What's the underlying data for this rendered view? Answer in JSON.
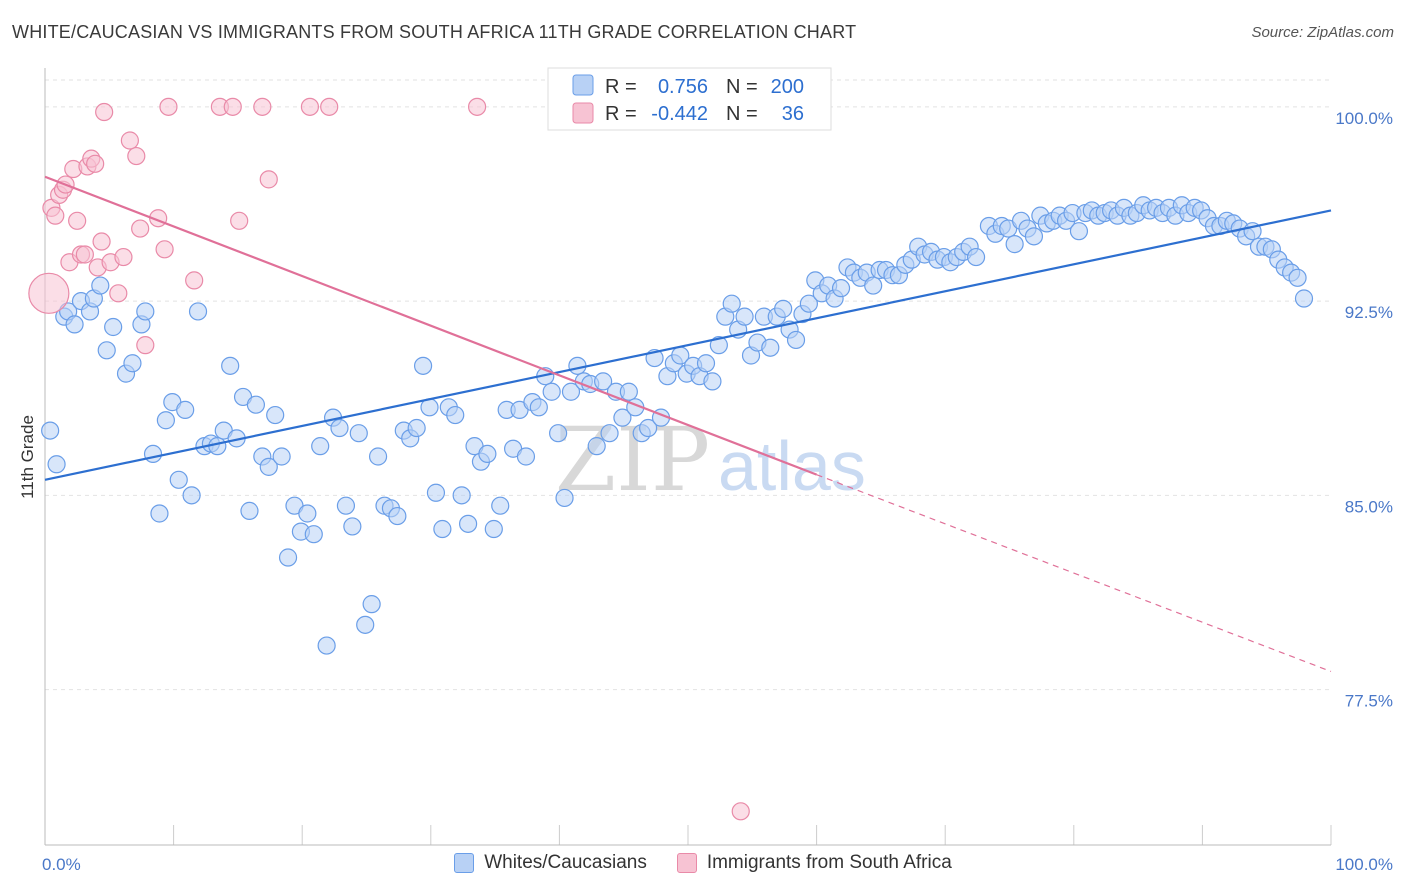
{
  "title": "WHITE/CAUCASIAN VS IMMIGRANTS FROM SOUTH AFRICA 11TH GRADE CORRELATION CHART",
  "source": "Source: ZipAtlas.com",
  "watermark": {
    "zip": "ZIP",
    "atlas": "atlas"
  },
  "colors": {
    "blue": "#6a9ee8",
    "blue_fill": "#b8d1f5",
    "blue_line": "#2d6fd0",
    "pink": "#e98aa8",
    "pink_fill": "#f7c3d3",
    "pink_line": "#e07098",
    "axis_text": "#4a78c8"
  },
  "legend_top": [
    {
      "r_label": "R =",
      "r_value": "0.756",
      "n_label": "N =",
      "n_value": "200"
    },
    {
      "r_label": "R =",
      "r_value": "-0.442",
      "n_label": "N =",
      "n_value": "36"
    }
  ],
  "chart_data": {
    "type": "scatter",
    "title": "WHITE/CAUCASIAN VS IMMIGRANTS FROM SOUTH AFRICA 11TH GRADE CORRELATION CHART",
    "xlabel": "",
    "ylabel": "11th Grade",
    "xlim": [
      0,
      100
    ],
    "ylim": [
      71.5,
      101.5
    ],
    "x_tick_labels": [
      "0.0%",
      "100.0%"
    ],
    "y_ticks": [
      77.5,
      85.0,
      92.5,
      100.0
    ],
    "y_tick_labels": [
      "77.5%",
      "85.0%",
      "92.5%",
      "100.0%"
    ],
    "legend": [
      "Whites/Caucasians",
      "Immigrants from South Africa"
    ],
    "series": [
      {
        "name": "Whites/Caucasians",
        "trend": {
          "x": [
            0,
            100
          ],
          "y": [
            85.6,
            96.0
          ]
        },
        "points": [
          [
            0.4,
            87.5
          ],
          [
            0.9,
            86.2
          ],
          [
            1.5,
            91.9
          ],
          [
            1.8,
            92.1
          ],
          [
            2.3,
            91.6
          ],
          [
            2.8,
            92.5
          ],
          [
            3.5,
            92.1
          ],
          [
            3.8,
            92.6
          ],
          [
            4.3,
            93.1
          ],
          [
            4.8,
            90.6
          ],
          [
            5.3,
            91.5
          ],
          [
            6.3,
            89.7
          ],
          [
            6.8,
            90.1
          ],
          [
            7.5,
            91.6
          ],
          [
            7.8,
            92.1
          ],
          [
            8.4,
            86.6
          ],
          [
            8.9,
            84.3
          ],
          [
            9.4,
            87.9
          ],
          [
            9.9,
            88.6
          ],
          [
            10.4,
            85.6
          ],
          [
            10.9,
            88.3
          ],
          [
            11.4,
            85.0
          ],
          [
            11.9,
            92.1
          ],
          [
            12.4,
            86.9
          ],
          [
            12.9,
            87.0
          ],
          [
            13.4,
            86.9
          ],
          [
            13.9,
            87.5
          ],
          [
            14.4,
            90.0
          ],
          [
            14.9,
            87.2
          ],
          [
            15.4,
            88.8
          ],
          [
            15.9,
            84.4
          ],
          [
            16.4,
            88.5
          ],
          [
            16.9,
            86.5
          ],
          [
            17.4,
            86.1
          ],
          [
            17.9,
            88.1
          ],
          [
            18.4,
            86.5
          ],
          [
            18.9,
            82.6
          ],
          [
            19.4,
            84.6
          ],
          [
            19.9,
            83.6
          ],
          [
            20.4,
            84.3
          ],
          [
            20.9,
            83.5
          ],
          [
            21.4,
            86.9
          ],
          [
            21.9,
            79.2
          ],
          [
            22.4,
            88.0
          ],
          [
            22.9,
            87.6
          ],
          [
            23.4,
            84.6
          ],
          [
            23.9,
            83.8
          ],
          [
            24.4,
            87.4
          ],
          [
            24.9,
            80.0
          ],
          [
            25.4,
            80.8
          ],
          [
            25.9,
            86.5
          ],
          [
            26.4,
            84.6
          ],
          [
            26.9,
            84.5
          ],
          [
            27.4,
            84.2
          ],
          [
            27.9,
            87.5
          ],
          [
            28.4,
            87.2
          ],
          [
            28.9,
            87.6
          ],
          [
            29.4,
            90.0
          ],
          [
            29.9,
            88.4
          ],
          [
            30.4,
            85.1
          ],
          [
            30.9,
            83.7
          ],
          [
            31.4,
            88.4
          ],
          [
            31.9,
            88.1
          ],
          [
            32.4,
            85.0
          ],
          [
            32.9,
            83.9
          ],
          [
            33.4,
            86.9
          ],
          [
            33.9,
            86.3
          ],
          [
            34.4,
            86.6
          ],
          [
            34.9,
            83.7
          ],
          [
            35.4,
            84.6
          ],
          [
            35.9,
            88.3
          ],
          [
            36.4,
            86.8
          ],
          [
            36.9,
            88.3
          ],
          [
            37.4,
            86.5
          ],
          [
            37.9,
            88.6
          ],
          [
            38.4,
            88.4
          ],
          [
            38.9,
            89.6
          ],
          [
            39.4,
            89.0
          ],
          [
            39.9,
            87.4
          ],
          [
            40.4,
            84.9
          ],
          [
            40.9,
            89.0
          ],
          [
            41.4,
            90.0
          ],
          [
            41.9,
            89.4
          ],
          [
            42.4,
            89.3
          ],
          [
            42.9,
            86.9
          ],
          [
            43.4,
            89.4
          ],
          [
            43.9,
            87.4
          ],
          [
            44.4,
            89.0
          ],
          [
            44.9,
            88.0
          ],
          [
            45.4,
            89.0
          ],
          [
            45.9,
            88.4
          ],
          [
            46.4,
            87.4
          ],
          [
            46.9,
            87.6
          ],
          [
            47.4,
            90.3
          ],
          [
            47.9,
            88.0
          ],
          [
            48.4,
            89.6
          ],
          [
            48.9,
            90.1
          ],
          [
            49.4,
            90.4
          ],
          [
            49.9,
            89.7
          ],
          [
            50.4,
            90.0
          ],
          [
            50.9,
            89.6
          ],
          [
            51.4,
            90.1
          ],
          [
            51.9,
            89.4
          ],
          [
            52.4,
            90.8
          ],
          [
            52.9,
            91.9
          ],
          [
            53.4,
            92.4
          ],
          [
            53.9,
            91.4
          ],
          [
            54.4,
            91.9
          ],
          [
            54.9,
            90.4
          ],
          [
            55.4,
            90.9
          ],
          [
            55.9,
            91.9
          ],
          [
            56.4,
            90.7
          ],
          [
            56.9,
            91.9
          ],
          [
            57.4,
            92.2
          ],
          [
            57.9,
            91.4
          ],
          [
            58.4,
            91.0
          ],
          [
            58.9,
            92.0
          ],
          [
            59.4,
            92.4
          ],
          [
            59.9,
            93.3
          ],
          [
            60.4,
            92.8
          ],
          [
            60.9,
            93.1
          ],
          [
            61.4,
            92.6
          ],
          [
            61.9,
            93.0
          ],
          [
            62.4,
            93.8
          ],
          [
            62.9,
            93.6
          ],
          [
            63.4,
            93.4
          ],
          [
            63.9,
            93.6
          ],
          [
            64.4,
            93.1
          ],
          [
            64.9,
            93.7
          ],
          [
            65.4,
            93.7
          ],
          [
            65.9,
            93.5
          ],
          [
            66.4,
            93.5
          ],
          [
            66.9,
            93.9
          ],
          [
            67.4,
            94.1
          ],
          [
            67.9,
            94.6
          ],
          [
            68.4,
            94.3
          ],
          [
            68.9,
            94.4
          ],
          [
            69.4,
            94.1
          ],
          [
            69.9,
            94.2
          ],
          [
            70.4,
            94.0
          ],
          [
            70.9,
            94.2
          ],
          [
            71.4,
            94.4
          ],
          [
            71.9,
            94.6
          ],
          [
            72.4,
            94.2
          ],
          [
            73.4,
            95.4
          ],
          [
            73.9,
            95.1
          ],
          [
            74.4,
            95.4
          ],
          [
            74.9,
            95.3
          ],
          [
            75.4,
            94.7
          ],
          [
            75.9,
            95.6
          ],
          [
            76.4,
            95.3
          ],
          [
            76.9,
            95.0
          ],
          [
            77.4,
            95.8
          ],
          [
            77.9,
            95.5
          ],
          [
            78.4,
            95.6
          ],
          [
            78.9,
            95.8
          ],
          [
            79.4,
            95.6
          ],
          [
            79.9,
            95.9
          ],
          [
            80.4,
            95.2
          ],
          [
            80.9,
            95.9
          ],
          [
            81.4,
            96.0
          ],
          [
            81.9,
            95.8
          ],
          [
            82.4,
            95.9
          ],
          [
            82.9,
            96.0
          ],
          [
            83.4,
            95.8
          ],
          [
            83.9,
            96.1
          ],
          [
            84.4,
            95.8
          ],
          [
            84.9,
            95.9
          ],
          [
            85.4,
            96.2
          ],
          [
            85.9,
            96.0
          ],
          [
            86.4,
            96.1
          ],
          [
            86.9,
            95.9
          ],
          [
            87.4,
            96.1
          ],
          [
            87.9,
            95.8
          ],
          [
            88.4,
            96.2
          ],
          [
            88.9,
            95.9
          ],
          [
            89.4,
            96.1
          ],
          [
            89.9,
            96.0
          ],
          [
            90.4,
            95.7
          ],
          [
            90.9,
            95.4
          ],
          [
            91.4,
            95.4
          ],
          [
            91.9,
            95.6
          ],
          [
            92.4,
            95.5
          ],
          [
            92.9,
            95.3
          ],
          [
            93.4,
            95.0
          ],
          [
            93.9,
            95.2
          ],
          [
            94.4,
            94.6
          ],
          [
            94.9,
            94.6
          ],
          [
            95.4,
            94.5
          ],
          [
            95.9,
            94.1
          ],
          [
            96.4,
            93.8
          ],
          [
            96.9,
            93.6
          ],
          [
            97.4,
            93.4
          ],
          [
            97.9,
            92.6
          ]
        ]
      },
      {
        "name": "Immigrants from South Africa",
        "trend": {
          "x": [
            0,
            60
          ],
          "y": [
            97.3,
            85.8
          ]
        },
        "trend_dashed": {
          "x": [
            60,
            100
          ],
          "y": [
            85.8,
            78.2
          ]
        },
        "points": [
          [
            0.3,
            92.8
          ],
          [
            0.5,
            96.1
          ],
          [
            0.8,
            95.8
          ],
          [
            1.1,
            96.6
          ],
          [
            1.4,
            96.8
          ],
          [
            1.6,
            97.0
          ],
          [
            1.9,
            94.0
          ],
          [
            2.2,
            97.6
          ],
          [
            2.5,
            95.6
          ],
          [
            2.8,
            94.3
          ],
          [
            3.1,
            94.3
          ],
          [
            3.3,
            97.7
          ],
          [
            3.6,
            98.0
          ],
          [
            3.9,
            97.8
          ],
          [
            4.1,
            93.8
          ],
          [
            4.4,
            94.8
          ],
          [
            4.6,
            99.8
          ],
          [
            5.1,
            94.0
          ],
          [
            5.7,
            92.8
          ],
          [
            6.1,
            94.2
          ],
          [
            6.6,
            98.7
          ],
          [
            7.1,
            98.1
          ],
          [
            7.4,
            95.3
          ],
          [
            7.8,
            90.8
          ],
          [
            8.8,
            95.7
          ],
          [
            9.3,
            94.5
          ],
          [
            9.6,
            100.0
          ],
          [
            11.6,
            93.3
          ],
          [
            13.6,
            100.0
          ],
          [
            14.6,
            100.0
          ],
          [
            15.1,
            95.6
          ],
          [
            16.9,
            100.0
          ],
          [
            17.4,
            97.2
          ],
          [
            20.6,
            100.0
          ],
          [
            22.1,
            100.0
          ],
          [
            33.6,
            100.0
          ],
          [
            54.1,
            72.8
          ]
        ]
      }
    ]
  }
}
